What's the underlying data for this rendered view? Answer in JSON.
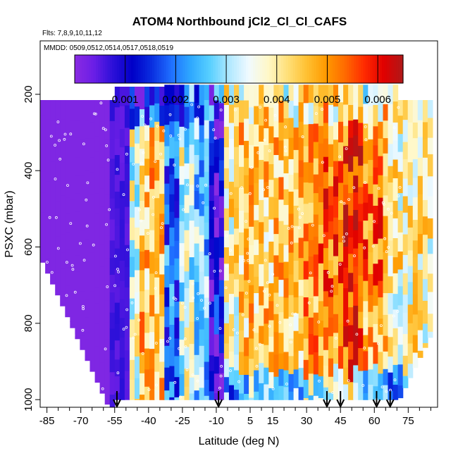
{
  "chart_data": {
    "type": "heatmap",
    "title": "ATOM4 Northbound jCl2_Cl_Cl_CAFS",
    "subtitle_flights": "Flts: 7,8,9,10,11,12",
    "subtitle_dates": "MMDD: 0509,0512,0514,0517,0518,0519",
    "xlabel": "Latitude (deg N)",
    "ylabel": "PSXC (mbar)",
    "xlim": [
      -88,
      88
    ],
    "ylim": [
      1020,
      60
    ],
    "x_ticks": [
      -85,
      -70,
      -55,
      -40,
      -25,
      -10,
      5,
      15,
      30,
      45,
      60,
      75
    ],
    "x_minor_ticks": [
      -80,
      -75,
      -65,
      -60,
      -50,
      -45,
      -35,
      -30,
      -20,
      -15,
      -5,
      0,
      10,
      20,
      25,
      35,
      40,
      50,
      55,
      65,
      70,
      80,
      85
    ],
    "y_ticks": [
      200,
      400,
      600,
      800,
      1000
    ],
    "colorbar": {
      "range": [
        0,
        0.0065
      ],
      "ticks": [
        0.001,
        0.002,
        0.003,
        0.004,
        0.005,
        0.006
      ],
      "tick_labels": [
        "0.001",
        "0.002",
        "0.003",
        "0.004",
        "0.005",
        "0.006"
      ],
      "colors": [
        "#8a2be2",
        "#6a1ee6",
        "#2b0fd8",
        "#0000c8",
        "#0a2fe0",
        "#1f6fff",
        "#2ea8ff",
        "#58d0ff",
        "#b0e8ff",
        "#f0faff",
        "#fff8c8",
        "#ffe07a",
        "#ffc133",
        "#ff9a00",
        "#ff6a00",
        "#ff2a00",
        "#e00000",
        "#b01818"
      ]
    },
    "profile_markers_latitude": [
      -54,
      -9,
      39,
      45,
      61,
      67
    ],
    "grid": false,
    "legend": "colorbar top"
  }
}
